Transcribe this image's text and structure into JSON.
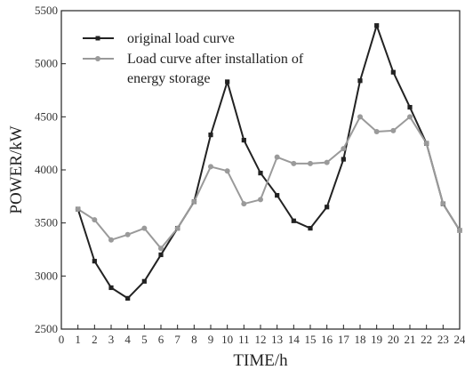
{
  "chart_data": {
    "type": "line",
    "xlabel": "TIME/h",
    "ylabel": "POWER/kW",
    "xlim": [
      0,
      24
    ],
    "ylim": [
      2500,
      5500
    ],
    "xticks": [
      0,
      1,
      2,
      3,
      4,
      5,
      6,
      7,
      8,
      9,
      10,
      11,
      12,
      13,
      14,
      15,
      16,
      17,
      18,
      19,
      20,
      21,
      22,
      23,
      24
    ],
    "yticks": [
      2500,
      3000,
      3500,
      4000,
      4500,
      5000,
      5500
    ],
    "grid": false,
    "legend_position": "top-left",
    "x": [
      1,
      2,
      3,
      4,
      5,
      6,
      7,
      8,
      9,
      10,
      11,
      12,
      13,
      14,
      15,
      16,
      17,
      18,
      19,
      20,
      21,
      22,
      23,
      24
    ],
    "series": [
      {
        "name": "original load curve",
        "color": "#222222",
        "marker": "square",
        "values": [
          3630,
          3140,
          2890,
          2790,
          2950,
          3200,
          3450,
          3700,
          4330,
          4830,
          4280,
          3970,
          3760,
          3520,
          3450,
          3650,
          4100,
          4840,
          5360,
          4920,
          4590,
          4250,
          3680,
          3430
        ]
      },
      {
        "name": "Load curve after installation of energy storage",
        "legend_lines": [
          "Load curve after installation of",
          "energy storage"
        ],
        "color": "#9a9a9a",
        "marker": "circle",
        "values": [
          3630,
          3530,
          3340,
          3390,
          3450,
          3260,
          3450,
          3700,
          4030,
          3990,
          3680,
          3720,
          4120,
          4060,
          4060,
          4070,
          4200,
          4500,
          4360,
          4370,
          4500,
          4250,
          3680,
          3430
        ]
      }
    ]
  }
}
